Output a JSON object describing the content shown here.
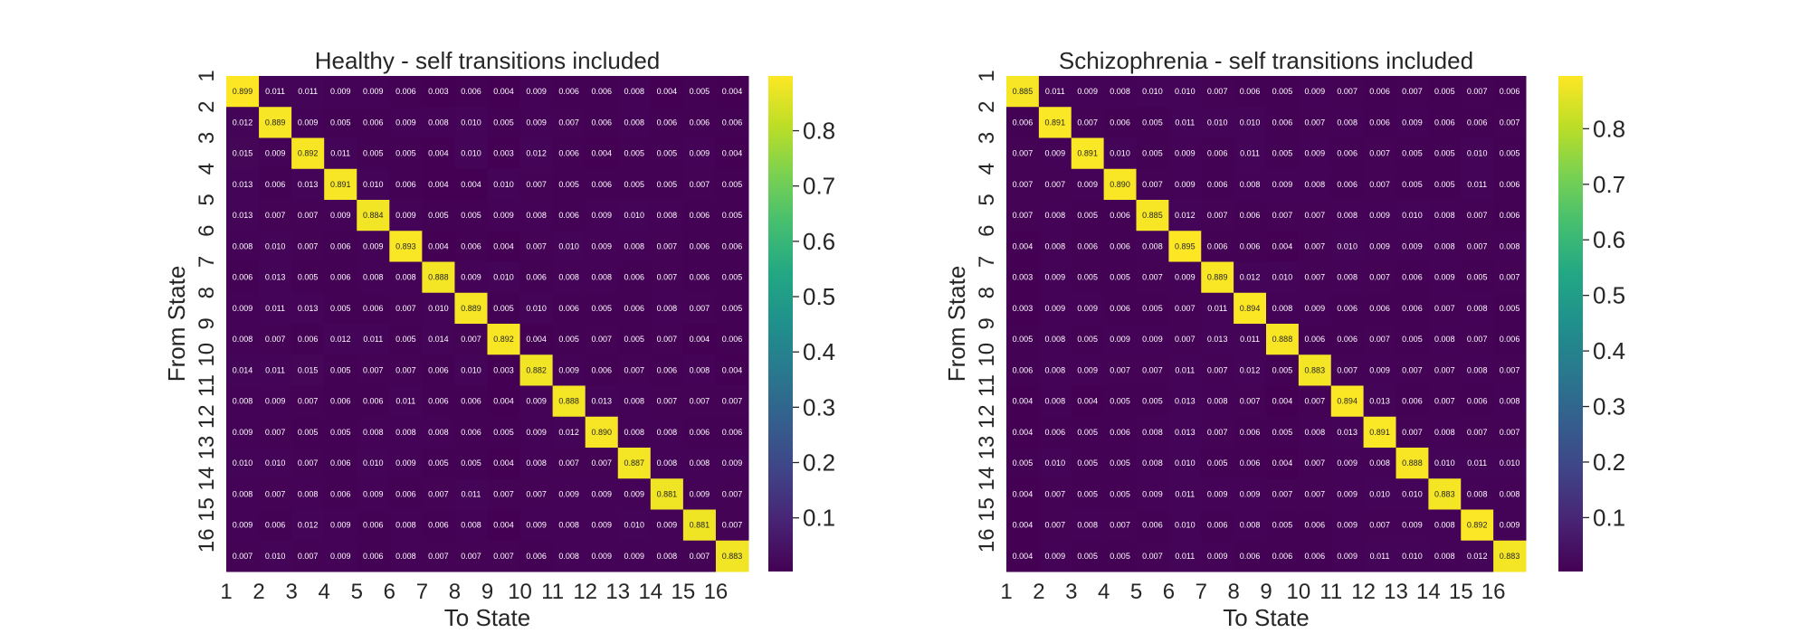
{
  "chart_data": [
    {
      "type": "heatmap",
      "title": "Healthy - self transitions included",
      "xlabel": "To State",
      "ylabel": "From State",
      "x_ticks": [
        "1",
        "2",
        "3",
        "4",
        "5",
        "6",
        "7",
        "8",
        "9",
        "10",
        "11",
        "12",
        "13",
        "14",
        "15",
        "16"
      ],
      "y_ticks": [
        "1",
        "2",
        "3",
        "4",
        "5",
        "6",
        "7",
        "8",
        "9",
        "10",
        "11",
        "12",
        "13",
        "14",
        "15",
        "16"
      ],
      "colormap": "viridis",
      "colorbar": {
        "range": [
          0.003,
          0.899
        ],
        "ticks": [
          0.1,
          0.2,
          0.3,
          0.4,
          0.5,
          0.6,
          0.7,
          0.8
        ],
        "tick_labels": [
          "0.1",
          "0.2",
          "0.3",
          "0.4",
          "0.5",
          "0.6",
          "0.7",
          "0.8"
        ]
      },
      "values": [
        [
          0.899,
          0.011,
          0.011,
          0.009,
          0.009,
          0.006,
          0.003,
          0.006,
          0.004,
          0.009,
          0.006,
          0.006,
          0.008,
          0.004,
          0.005,
          0.004
        ],
        [
          0.012,
          0.889,
          0.009,
          0.005,
          0.006,
          0.009,
          0.008,
          0.01,
          0.005,
          0.009,
          0.007,
          0.006,
          0.008,
          0.006,
          0.006,
          0.006
        ],
        [
          0.015,
          0.009,
          0.892,
          0.011,
          0.005,
          0.005,
          0.004,
          0.01,
          0.003,
          0.012,
          0.006,
          0.004,
          0.005,
          0.005,
          0.009,
          0.004
        ],
        [
          0.013,
          0.006,
          0.013,
          0.891,
          0.01,
          0.006,
          0.004,
          0.004,
          0.01,
          0.007,
          0.005,
          0.006,
          0.005,
          0.005,
          0.007,
          0.005
        ],
        [
          0.013,
          0.007,
          0.007,
          0.009,
          0.884,
          0.009,
          0.005,
          0.005,
          0.009,
          0.008,
          0.006,
          0.009,
          0.01,
          0.008,
          0.006,
          0.005
        ],
        [
          0.008,
          0.01,
          0.007,
          0.006,
          0.009,
          0.893,
          0.004,
          0.006,
          0.004,
          0.007,
          0.01,
          0.009,
          0.008,
          0.007,
          0.006,
          0.006
        ],
        [
          0.006,
          0.013,
          0.005,
          0.006,
          0.008,
          0.008,
          0.888,
          0.009,
          0.01,
          0.006,
          0.008,
          0.008,
          0.006,
          0.007,
          0.006,
          0.005
        ],
        [
          0.009,
          0.011,
          0.013,
          0.005,
          0.006,
          0.007,
          0.01,
          0.889,
          0.005,
          0.01,
          0.006,
          0.005,
          0.006,
          0.008,
          0.007,
          0.005
        ],
        [
          0.008,
          0.007,
          0.006,
          0.012,
          0.011,
          0.005,
          0.014,
          0.007,
          0.892,
          0.004,
          0.005,
          0.007,
          0.005,
          0.007,
          0.004,
          0.006
        ],
        [
          0.014,
          0.011,
          0.015,
          0.005,
          0.007,
          0.007,
          0.006,
          0.01,
          0.003,
          0.882,
          0.009,
          0.006,
          0.007,
          0.006,
          0.008,
          0.004
        ],
        [
          0.008,
          0.009,
          0.007,
          0.006,
          0.006,
          0.011,
          0.006,
          0.006,
          0.004,
          0.009,
          0.888,
          0.013,
          0.008,
          0.007,
          0.007,
          0.007
        ],
        [
          0.009,
          0.007,
          0.005,
          0.005,
          0.008,
          0.008,
          0.008,
          0.006,
          0.005,
          0.009,
          0.012,
          0.89,
          0.008,
          0.008,
          0.006,
          0.006
        ],
        [
          0.01,
          0.01,
          0.007,
          0.006,
          0.01,
          0.009,
          0.005,
          0.005,
          0.004,
          0.008,
          0.007,
          0.007,
          0.887,
          0.008,
          0.008,
          0.009
        ],
        [
          0.008,
          0.007,
          0.008,
          0.006,
          0.009,
          0.006,
          0.007,
          0.011,
          0.007,
          0.007,
          0.009,
          0.009,
          0.009,
          0.881,
          0.009,
          0.007
        ],
        [
          0.009,
          0.006,
          0.012,
          0.009,
          0.006,
          0.008,
          0.006,
          0.008,
          0.004,
          0.009,
          0.008,
          0.009,
          0.01,
          0.009,
          0.881,
          0.007
        ],
        [
          0.007,
          0.01,
          0.007,
          0.009,
          0.006,
          0.008,
          0.007,
          0.007,
          0.007,
          0.006,
          0.008,
          0.009,
          0.009,
          0.008,
          0.007,
          0.883
        ]
      ]
    },
    {
      "type": "heatmap",
      "title": "Schizophrenia - self transitions included",
      "xlabel": "To State",
      "ylabel": "From State",
      "x_ticks": [
        "1",
        "2",
        "3",
        "4",
        "5",
        "6",
        "7",
        "8",
        "9",
        "10",
        "11",
        "12",
        "13",
        "14",
        "15",
        "16"
      ],
      "y_ticks": [
        "1",
        "2",
        "3",
        "4",
        "5",
        "6",
        "7",
        "8",
        "9",
        "10",
        "11",
        "12",
        "13",
        "14",
        "15",
        "16"
      ],
      "colormap": "viridis",
      "colorbar": {
        "range": [
          0.003,
          0.895
        ],
        "ticks": [
          0.1,
          0.2,
          0.3,
          0.4,
          0.5,
          0.6,
          0.7,
          0.8
        ],
        "tick_labels": [
          "0.1",
          "0.2",
          "0.3",
          "0.4",
          "0.5",
          "0.6",
          "0.7",
          "0.8"
        ]
      },
      "values": [
        [
          0.885,
          0.011,
          0.009,
          0.008,
          0.01,
          0.01,
          0.007,
          0.006,
          0.005,
          0.009,
          0.007,
          0.006,
          0.007,
          0.005,
          0.007,
          0.006
        ],
        [
          0.006,
          0.891,
          0.007,
          0.006,
          0.005,
          0.011,
          0.01,
          0.01,
          0.006,
          0.007,
          0.008,
          0.006,
          0.009,
          0.006,
          0.006,
          0.007
        ],
        [
          0.007,
          0.009,
          0.891,
          0.01,
          0.005,
          0.009,
          0.006,
          0.011,
          0.005,
          0.009,
          0.006,
          0.007,
          0.005,
          0.005,
          0.01,
          0.005
        ],
        [
          0.007,
          0.007,
          0.009,
          0.89,
          0.007,
          0.009,
          0.006,
          0.008,
          0.009,
          0.008,
          0.006,
          0.007,
          0.005,
          0.005,
          0.011,
          0.006
        ],
        [
          0.007,
          0.008,
          0.005,
          0.006,
          0.885,
          0.012,
          0.007,
          0.006,
          0.007,
          0.007,
          0.008,
          0.009,
          0.01,
          0.008,
          0.007,
          0.006
        ],
        [
          0.004,
          0.008,
          0.006,
          0.006,
          0.008,
          0.895,
          0.006,
          0.006,
          0.004,
          0.007,
          0.01,
          0.009,
          0.009,
          0.008,
          0.007,
          0.008
        ],
        [
          0.003,
          0.009,
          0.005,
          0.005,
          0.007,
          0.009,
          0.889,
          0.012,
          0.01,
          0.007,
          0.008,
          0.007,
          0.006,
          0.009,
          0.005,
          0.007
        ],
        [
          0.003,
          0.009,
          0.009,
          0.006,
          0.005,
          0.007,
          0.011,
          0.894,
          0.008,
          0.009,
          0.006,
          0.006,
          0.006,
          0.007,
          0.008,
          0.005
        ],
        [
          0.005,
          0.008,
          0.005,
          0.009,
          0.009,
          0.007,
          0.013,
          0.011,
          0.888,
          0.006,
          0.006,
          0.007,
          0.005,
          0.008,
          0.007,
          0.006
        ],
        [
          0.006,
          0.008,
          0.009,
          0.007,
          0.007,
          0.011,
          0.007,
          0.012,
          0.005,
          0.883,
          0.007,
          0.009,
          0.007,
          0.007,
          0.008,
          0.007
        ],
        [
          0.004,
          0.008,
          0.004,
          0.005,
          0.005,
          0.013,
          0.008,
          0.007,
          0.004,
          0.007,
          0.894,
          0.013,
          0.006,
          0.007,
          0.006,
          0.008
        ],
        [
          0.004,
          0.006,
          0.005,
          0.006,
          0.008,
          0.013,
          0.007,
          0.006,
          0.005,
          0.008,
          0.013,
          0.891,
          0.007,
          0.008,
          0.007,
          0.007
        ],
        [
          0.005,
          0.01,
          0.005,
          0.005,
          0.008,
          0.01,
          0.005,
          0.006,
          0.004,
          0.007,
          0.009,
          0.008,
          0.888,
          0.01,
          0.011,
          0.01
        ],
        [
          0.004,
          0.007,
          0.005,
          0.005,
          0.009,
          0.011,
          0.009,
          0.009,
          0.007,
          0.007,
          0.009,
          0.01,
          0.01,
          0.883,
          0.008,
          0.008
        ],
        [
          0.004,
          0.007,
          0.008,
          0.007,
          0.006,
          0.01,
          0.006,
          0.008,
          0.005,
          0.006,
          0.009,
          0.007,
          0.009,
          0.008,
          0.892,
          0.009
        ],
        [
          0.004,
          0.009,
          0.005,
          0.005,
          0.007,
          0.011,
          0.009,
          0.006,
          0.006,
          0.006,
          0.009,
          0.011,
          0.01,
          0.008,
          0.012,
          0.883
        ]
      ]
    }
  ]
}
